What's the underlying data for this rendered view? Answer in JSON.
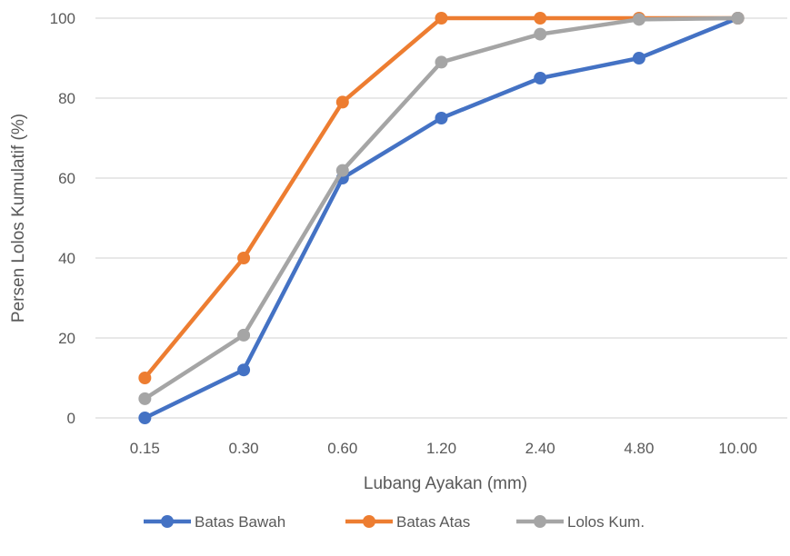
{
  "chart_data": {
    "type": "line",
    "title": "",
    "xlabel": "Lubang Ayakan (mm)",
    "ylabel": "Persen Lolos Kumulatif (%)",
    "categories": [
      "0.15",
      "0.30",
      "0.60",
      "1.20",
      "2.40",
      "4.80",
      "10.00"
    ],
    "ylim": [
      0,
      100
    ],
    "yticks": [
      0,
      20,
      40,
      60,
      80,
      100
    ],
    "grid": true,
    "legend_position": "bottom",
    "series": [
      {
        "name": "Batas Bawah",
        "color": "#4472C4",
        "values": [
          0,
          12,
          60,
          75,
          85,
          90,
          100
        ]
      },
      {
        "name": "Batas Atas",
        "color": "#ED7D31",
        "values": [
          10,
          40,
          79,
          100,
          100,
          100,
          100
        ]
      },
      {
        "name": "Lolos Kum.",
        "color": "#A5A5A5",
        "values": [
          4.8,
          20.7,
          61.9,
          89,
          96,
          99.7,
          100
        ]
      }
    ]
  }
}
